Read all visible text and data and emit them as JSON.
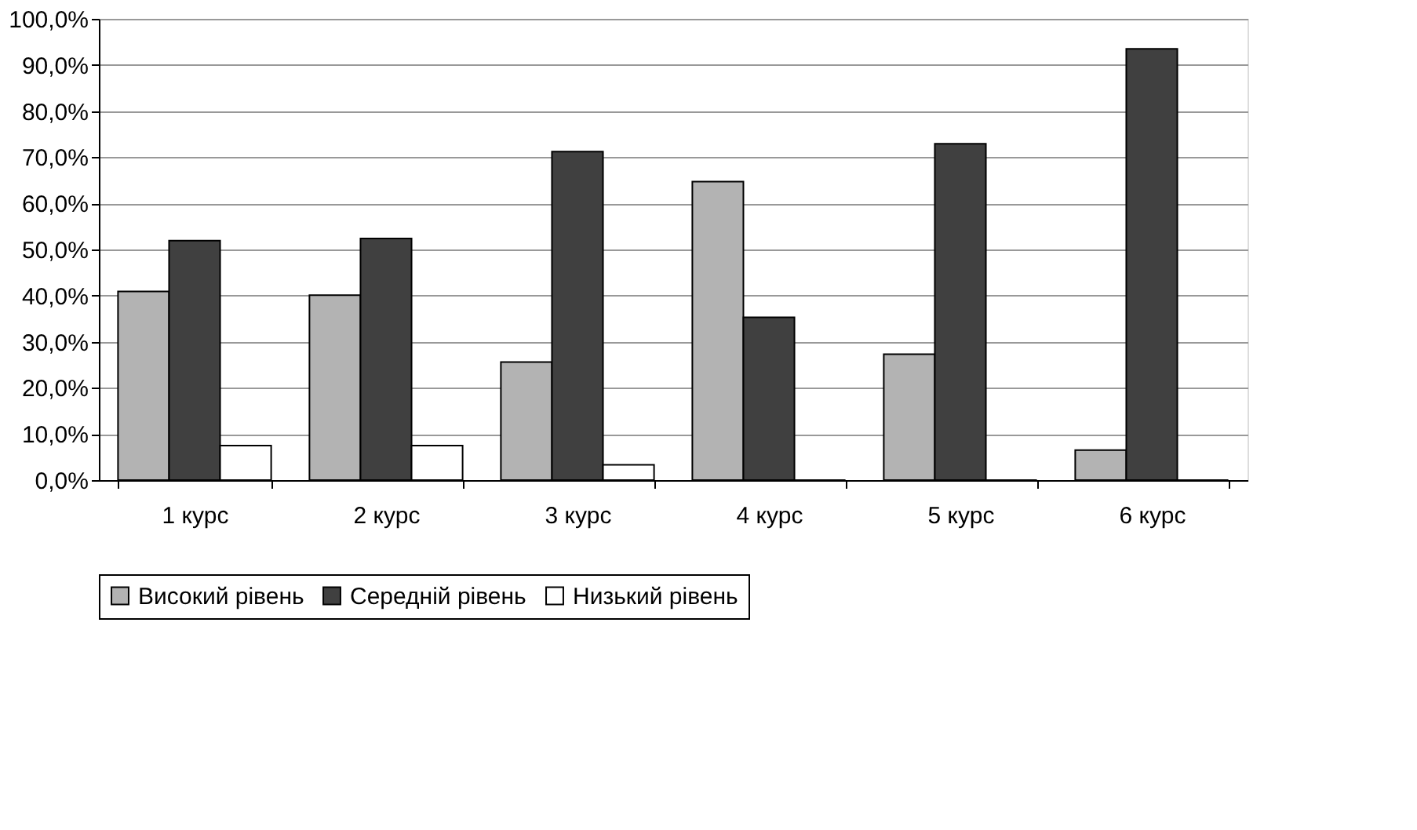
{
  "chart_data": {
    "type": "bar",
    "categories": [
      "1 курс",
      "2 курс",
      "3 курс",
      "4 курс",
      "5 курс",
      "6 курс"
    ],
    "series": [
      {
        "name": "Високий рівень",
        "color": "#b3b3b3",
        "values": [
          40.9,
          40.1,
          25.6,
          64.7,
          27.3,
          6.5
        ]
      },
      {
        "name": "Середній рівень",
        "color": "#404040",
        "values": [
          51.9,
          52.4,
          71.2,
          35.3,
          72.9,
          93.5
        ]
      },
      {
        "name": "Низький рівень",
        "color": "#ffffff",
        "values": [
          7.5,
          7.5,
          3.3,
          0,
          0,
          0
        ]
      }
    ],
    "ylim": [
      0,
      100
    ],
    "yticks": [
      {
        "value": 0,
        "label": "0,0%"
      },
      {
        "value": 10,
        "label": "10,0%"
      },
      {
        "value": 20,
        "label": "20,0%"
      },
      {
        "value": 30,
        "label": "30,0%"
      },
      {
        "value": 40,
        "label": "40,0%"
      },
      {
        "value": 50,
        "label": "50,0%"
      },
      {
        "value": 60,
        "label": "60,0%"
      },
      {
        "value": 70,
        "label": "70,0%"
      },
      {
        "value": 80,
        "label": "80,0%"
      },
      {
        "value": 90,
        "label": "90,0%"
      },
      {
        "value": 100,
        "label": "100,0%"
      }
    ],
    "grid": "y",
    "legend": "bottom"
  }
}
